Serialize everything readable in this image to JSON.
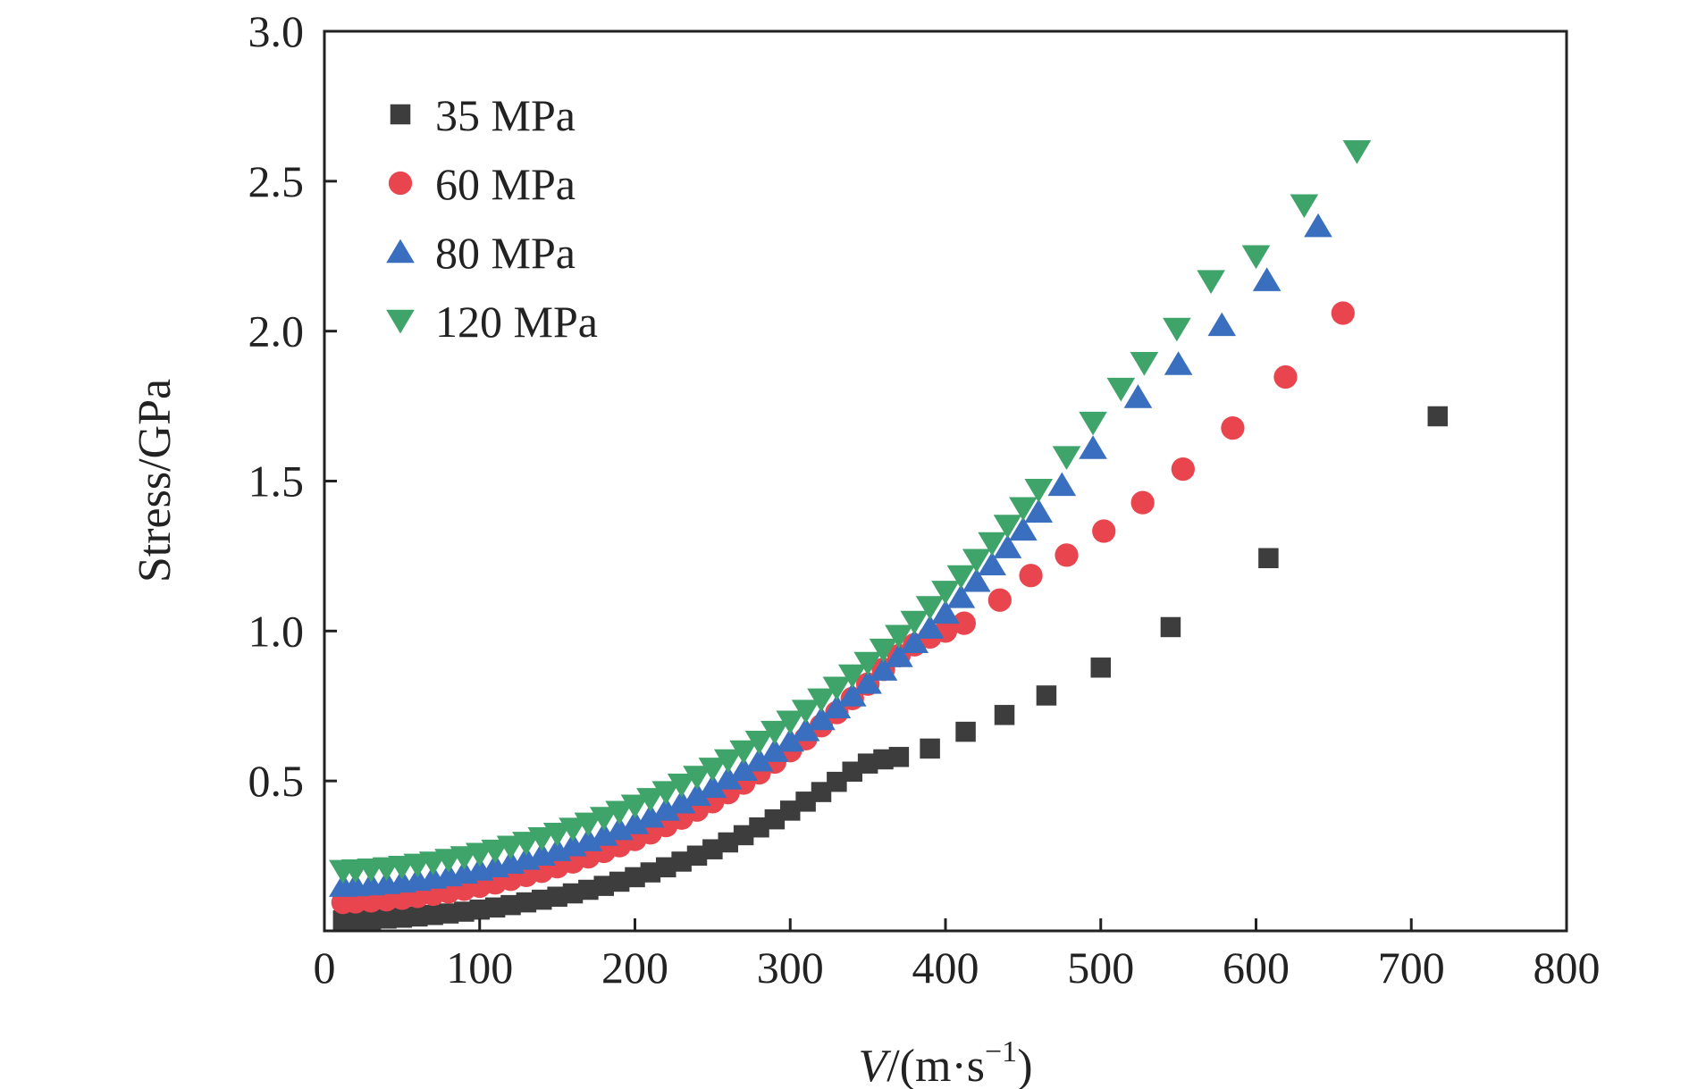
{
  "chart_data": {
    "type": "scatter",
    "title": "",
    "xlabel": {
      "italic": "V",
      "rest": "/(m·s",
      "sup": "−1",
      "close": ")"
    },
    "ylabel": "Stress/GPa",
    "xlim": [
      0,
      800
    ],
    "ylim": [
      0,
      3.0
    ],
    "xticks": [
      0,
      100,
      200,
      300,
      400,
      500,
      600,
      700,
      800
    ],
    "xtick_labels": [
      "0",
      "100",
      "200",
      "300",
      "400",
      "500",
      "600",
      "700",
      "800"
    ],
    "yticks": [
      0.5,
      1.0,
      1.5,
      2.0,
      2.5,
      3.0
    ],
    "ytick_labels": [
      "0.5",
      "1.0",
      "1.5",
      "2.0",
      "2.5",
      "3.0"
    ],
    "grid": false,
    "legend_position": "top-left",
    "series": [
      {
        "name": "35 MPa",
        "marker": "square",
        "color": "#3d3d3d",
        "x": [
          12,
          20,
          30,
          40,
          50,
          60,
          70,
          80,
          90,
          100,
          110,
          120,
          130,
          140,
          150,
          160,
          170,
          180,
          190,
          200,
          210,
          220,
          230,
          240,
          250,
          260,
          270,
          280,
          290,
          300,
          310,
          320,
          330,
          340,
          350,
          360,
          370,
          390,
          413,
          438,
          465,
          500,
          545,
          608,
          717
        ],
        "y": [
          0.035,
          0.036,
          0.038,
          0.041,
          0.044,
          0.048,
          0.053,
          0.058,
          0.064,
          0.071,
          0.078,
          0.086,
          0.095,
          0.104,
          0.114,
          0.125,
          0.137,
          0.15,
          0.164,
          0.179,
          0.195,
          0.212,
          0.231,
          0.251,
          0.272,
          0.295,
          0.319,
          0.345,
          0.372,
          0.401,
          0.431,
          0.463,
          0.497,
          0.531,
          0.558,
          0.572,
          0.58,
          0.608,
          0.664,
          0.72,
          0.785,
          0.878,
          1.013,
          1.243,
          1.716
        ]
      },
      {
        "name": "60 MPa",
        "marker": "circle",
        "color": "#e8454e",
        "x": [
          12,
          20,
          30,
          40,
          50,
          60,
          70,
          80,
          90,
          100,
          110,
          120,
          130,
          140,
          150,
          160,
          170,
          180,
          190,
          200,
          210,
          220,
          230,
          240,
          250,
          260,
          270,
          280,
          290,
          300,
          310,
          320,
          330,
          340,
          350,
          360,
          370,
          380,
          390,
          400,
          412,
          435,
          455,
          478,
          502,
          527,
          553,
          585,
          619,
          656
        ],
        "y": [
          0.095,
          0.097,
          0.1,
          0.104,
          0.109,
          0.115,
          0.122,
          0.13,
          0.139,
          0.149,
          0.16,
          0.172,
          0.185,
          0.199,
          0.214,
          0.23,
          0.247,
          0.265,
          0.284,
          0.305,
          0.327,
          0.351,
          0.376,
          0.403,
          0.431,
          0.461,
          0.493,
          0.527,
          0.563,
          0.601,
          0.641,
          0.684,
          0.728,
          0.775,
          0.823,
          0.872,
          0.918,
          0.954,
          0.98,
          1.0,
          1.026,
          1.103,
          1.185,
          1.253,
          1.333,
          1.428,
          1.54,
          1.677,
          1.847,
          2.06
        ]
      },
      {
        "name": "80 MPa",
        "marker": "triangle-up",
        "color": "#3a6fbf",
        "x": [
          12,
          20,
          30,
          40,
          50,
          60,
          70,
          80,
          90,
          100,
          110,
          120,
          130,
          140,
          150,
          160,
          170,
          180,
          190,
          200,
          210,
          220,
          230,
          240,
          250,
          260,
          270,
          280,
          290,
          300,
          310,
          320,
          330,
          340,
          350,
          360,
          370,
          380,
          390,
          400,
          410,
          420,
          430,
          440,
          450,
          460,
          475,
          495,
          524,
          550,
          578,
          607,
          640
        ],
        "y": [
          0.15,
          0.152,
          0.155,
          0.159,
          0.164,
          0.17,
          0.177,
          0.185,
          0.194,
          0.204,
          0.215,
          0.227,
          0.24,
          0.254,
          0.269,
          0.285,
          0.302,
          0.32,
          0.339,
          0.359,
          0.381,
          0.404,
          0.428,
          0.453,
          0.48,
          0.508,
          0.537,
          0.568,
          0.6,
          0.634,
          0.669,
          0.706,
          0.745,
          0.785,
          0.827,
          0.871,
          0.916,
          0.963,
          1.011,
          1.061,
          1.113,
          1.167,
          1.222,
          1.279,
          1.338,
          1.398,
          1.487,
          1.61,
          1.78,
          1.89,
          2.02,
          2.17,
          2.35
        ]
      },
      {
        "name": "120 MPa",
        "marker": "triangle-down",
        "color": "#3fa46a",
        "x": [
          12,
          20,
          30,
          40,
          50,
          60,
          70,
          80,
          90,
          100,
          110,
          120,
          130,
          140,
          150,
          160,
          170,
          180,
          190,
          200,
          210,
          220,
          230,
          240,
          250,
          260,
          270,
          280,
          290,
          300,
          310,
          320,
          330,
          340,
          350,
          360,
          370,
          380,
          390,
          400,
          410,
          420,
          430,
          440,
          450,
          460,
          478,
          495,
          513,
          528,
          549,
          571,
          600,
          631,
          665
        ],
        "y": [
          0.2,
          0.202,
          0.205,
          0.209,
          0.214,
          0.221,
          0.228,
          0.237,
          0.246,
          0.257,
          0.268,
          0.281,
          0.294,
          0.309,
          0.324,
          0.341,
          0.358,
          0.377,
          0.397,
          0.418,
          0.44,
          0.463,
          0.488,
          0.514,
          0.541,
          0.569,
          0.599,
          0.631,
          0.664,
          0.698,
          0.734,
          0.772,
          0.811,
          0.852,
          0.894,
          0.938,
          0.984,
          1.031,
          1.08,
          1.131,
          1.183,
          1.237,
          1.293,
          1.351,
          1.41,
          1.471,
          1.58,
          1.695,
          1.808,
          1.894,
          2.008,
          2.167,
          2.25,
          2.42,
          2.6
        ]
      }
    ]
  }
}
